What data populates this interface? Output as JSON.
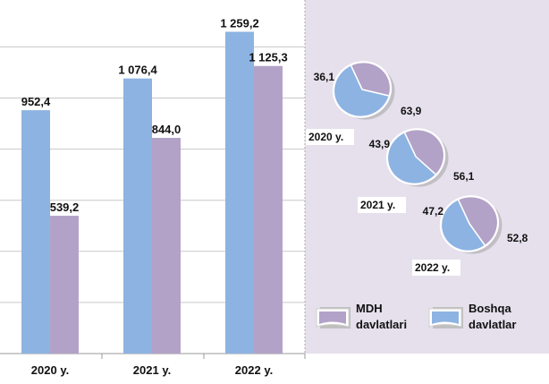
{
  "colors": {
    "boshqa": "#8db3e2",
    "mdh": "#b3a2c7",
    "right_panel_bg": "#e5e0ec",
    "grid": "#c8c8c8"
  },
  "legend": [
    {
      "key": "mdh",
      "label_line1": "MDH",
      "label_line2": "davlatlari",
      "color": "#b3a2c7"
    },
    {
      "key": "boshqa",
      "label_line1": "Boshqa",
      "label_line2": "davlatlar",
      "color": "#8db3e2"
    }
  ],
  "chart_data": [
    {
      "type": "bar",
      "categories": [
        "2020 y.",
        "2021 y.",
        "2022 y."
      ],
      "series": [
        {
          "name": "Boshqa davlatlar",
          "color": "#8db3e2",
          "values": [
            952.4,
            1076.4,
            1259.2
          ],
          "labels": [
            "952,4",
            "1 076,4",
            "1 259,2"
          ]
        },
        {
          "name": "MDH davlatlari",
          "color": "#b3a2c7",
          "values": [
            539.2,
            844.0,
            1125.3
          ],
          "labels": [
            "539,2",
            "844,0",
            "1 125,3"
          ]
        }
      ],
      "ylim": [
        0,
        1400
      ],
      "grid": true,
      "legend": "bottom-right"
    },
    {
      "type": "pie",
      "title": "2020 y.",
      "slices": [
        {
          "name": "MDH davlatlari",
          "value": 36.1,
          "label": "36,1",
          "color": "#b3a2c7"
        },
        {
          "name": "Boshqa davlatlar",
          "value": 63.9,
          "label": "63,9",
          "color": "#8db3e2"
        }
      ]
    },
    {
      "type": "pie",
      "title": "2021 y.",
      "slices": [
        {
          "name": "MDH davlatlari",
          "value": 43.9,
          "label": "43,9",
          "color": "#b3a2c7"
        },
        {
          "name": "Boshqa davlatlar",
          "value": 56.1,
          "label": "56,1",
          "color": "#8db3e2"
        }
      ]
    },
    {
      "type": "pie",
      "title": "2022 y.",
      "slices": [
        {
          "name": "MDH davlatlari",
          "value": 47.2,
          "label": "47,2",
          "color": "#b3a2c7"
        },
        {
          "name": "Boshqa davlatlar",
          "value": 52.8,
          "label": "52,8",
          "color": "#8db3e2"
        }
      ]
    }
  ]
}
